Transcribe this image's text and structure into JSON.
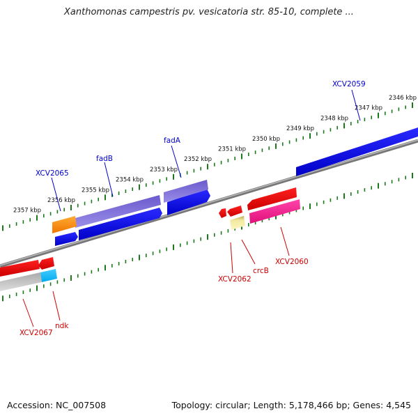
{
  "title": "Xanthomonas campestris pv. vesicatoria str. 85-10, complete ...",
  "accession_text": "Accession: NC_007508",
  "summary_text": "Topology: circular; Length: 5,178,466 bp; Genes: 4,545",
  "kbp_unit": "kbp",
  "tick_labels": [
    {
      "kbp": 2346,
      "text": "2346 kbp"
    },
    {
      "kbp": 2347,
      "text": "2347 kbp"
    },
    {
      "kbp": 2348,
      "text": "2348 kbp"
    },
    {
      "kbp": 2349,
      "text": "2349 kbp"
    },
    {
      "kbp": 2350,
      "text": "2350 kbp"
    },
    {
      "kbp": 2351,
      "text": "2351 kbp"
    },
    {
      "kbp": 2352,
      "text": "2352 kbp"
    },
    {
      "kbp": 2353,
      "text": "2353 kbp"
    },
    {
      "kbp": 2354,
      "text": "2354 kbp"
    },
    {
      "kbp": 2355,
      "text": "2355 kbp"
    },
    {
      "kbp": 2356,
      "text": "2356 kbp"
    },
    {
      "kbp": 2357,
      "text": "2357 kbp"
    }
  ],
  "genes": [
    {
      "label": "XCV2059",
      "strand": "forward",
      "color": "#0000cc"
    },
    {
      "label": "fadA",
      "strand": "forward",
      "color": "#0000cc"
    },
    {
      "label": "fadB",
      "strand": "forward",
      "color": "#0000cc"
    },
    {
      "label": "XCV2065",
      "strand": "forward",
      "color": "#0000cc"
    },
    {
      "label": "XCV2060",
      "strand": "reverse",
      "color": "#cc0000"
    },
    {
      "label": "crcB",
      "strand": "reverse",
      "color": "#cc0000"
    },
    {
      "label": "XCV2062",
      "strand": "reverse",
      "color": "#cc0000"
    },
    {
      "label": "ndk",
      "strand": "reverse",
      "color": "#cc0000"
    },
    {
      "label": "XCV2067",
      "strand": "reverse",
      "color": "#cc0000"
    }
  ],
  "colors": {
    "backbone": "#888888",
    "forward_gene": "#0000ee",
    "forward_label": "#0000cc",
    "reverse_gene": "#ee0000",
    "reverse_label": "#cc0000",
    "tick_marks": "#1a7a1a"
  }
}
